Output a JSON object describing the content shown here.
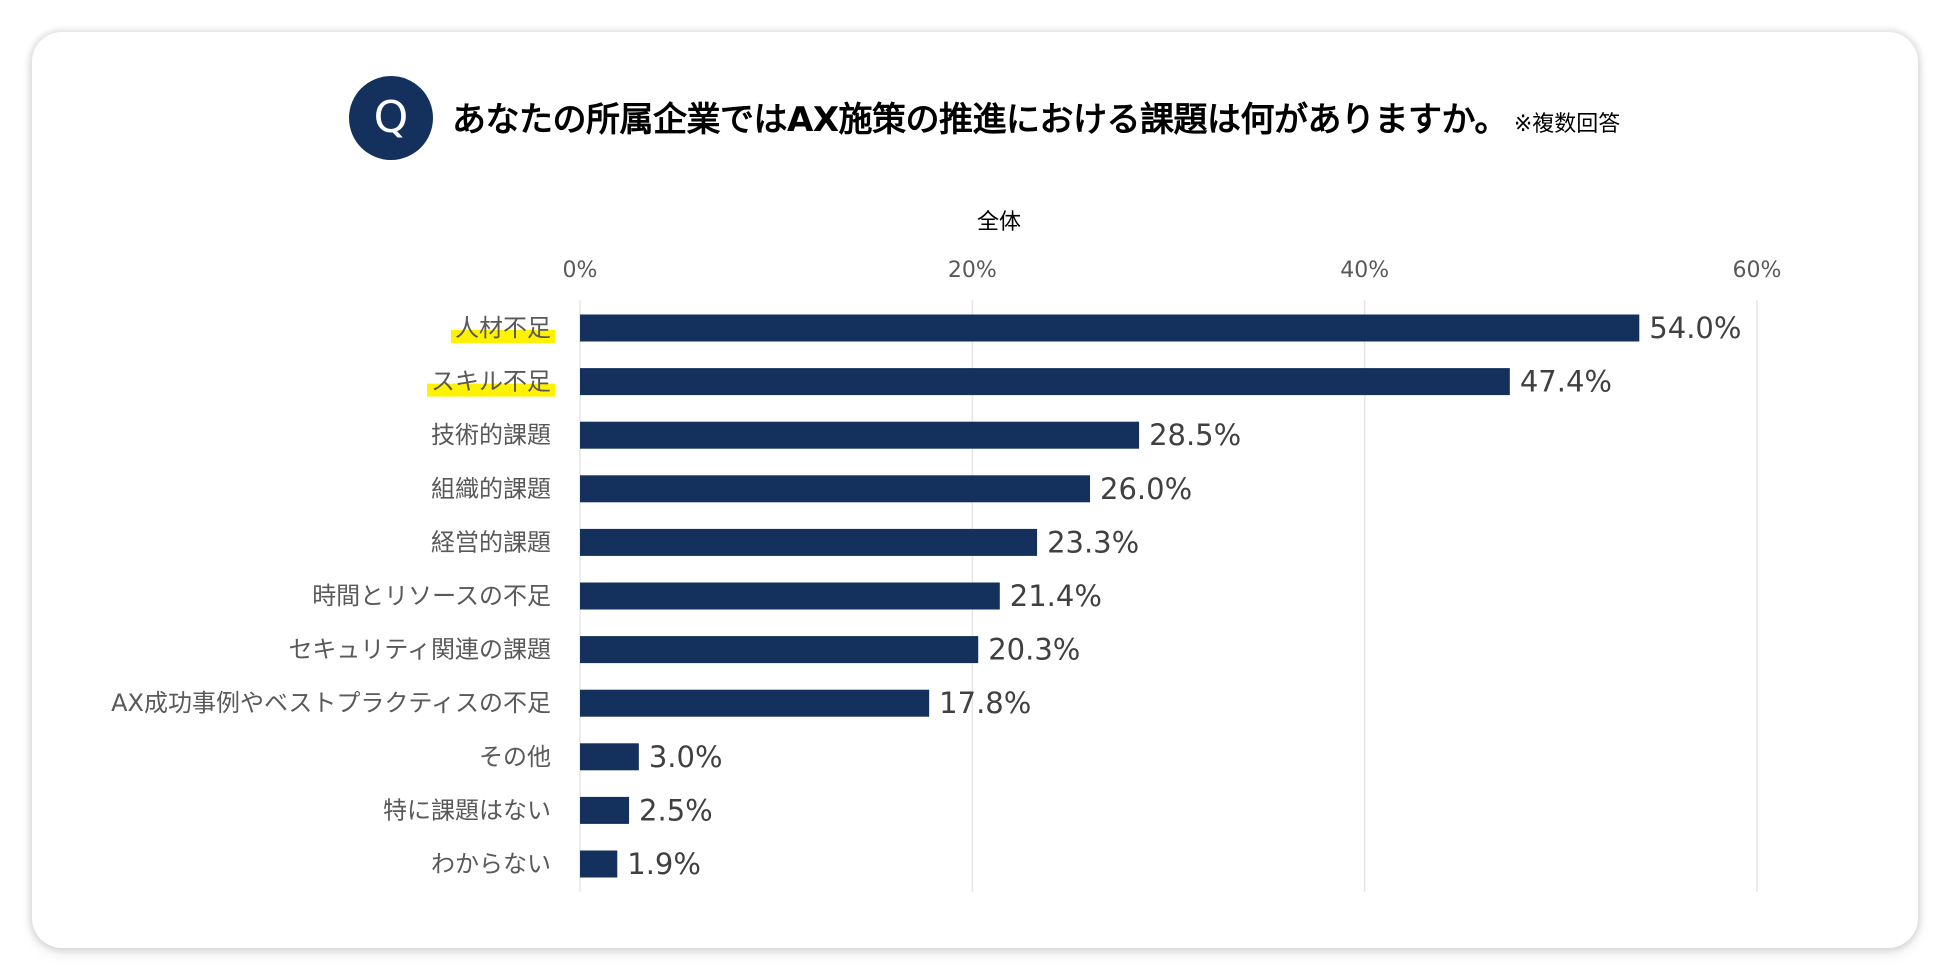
{
  "header": {
    "badge": "Q",
    "title": "あなたの所属企業ではAX施策の推進における課題は何がありますか。",
    "note": "※複数回答"
  },
  "colors": {
    "bar": "#13315c",
    "badge": "#13315c",
    "highlight": "#fff200",
    "grid": "#e6e6e6"
  },
  "chart_data": {
    "type": "bar",
    "orientation": "horizontal",
    "subtitle": "全体",
    "categories": [
      "人材不足",
      "スキル不足",
      "技術的課題",
      "組織的課題",
      "経営的課題",
      "時間とリソースの不足",
      "セキュリティ関連の課題",
      "AX成功事例やベストプラクティスの不足",
      "その他",
      "特に課題はない",
      "わからない"
    ],
    "values": [
      54.0,
      47.4,
      28.5,
      26.0,
      23.3,
      21.4,
      20.3,
      17.8,
      3.0,
      2.5,
      1.9
    ],
    "value_labels": [
      "54.0%",
      "47.4%",
      "28.5%",
      "26.0%",
      "23.3%",
      "21.4%",
      "20.3%",
      "17.8%",
      "3.0%",
      "2.5%",
      "1.9%"
    ],
    "highlighted_categories": [
      "人材不足",
      "スキル不足"
    ],
    "xlim": [
      0,
      60
    ],
    "x_ticks": [
      0,
      20,
      40,
      60
    ],
    "x_tick_labels": [
      "0%",
      "20%",
      "40%",
      "60%"
    ],
    "x_axis_position": "top",
    "grid": true
  }
}
